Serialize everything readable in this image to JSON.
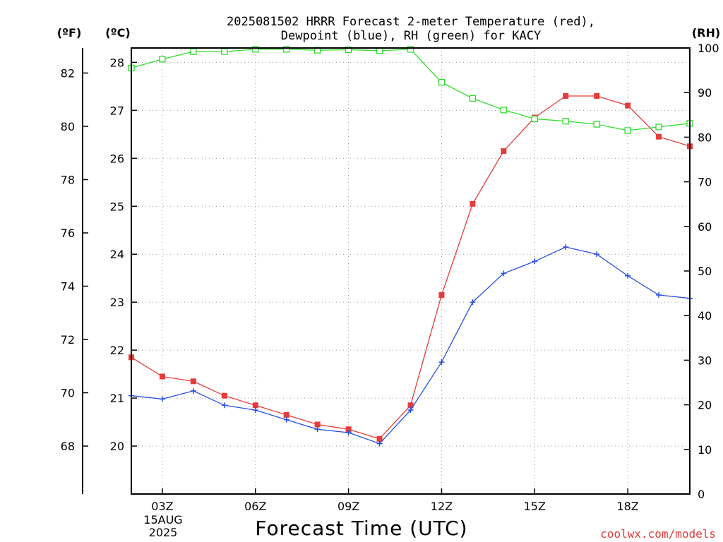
{
  "title_line1": "2025081502 HRRR Forecast 2-meter Temperature (red),",
  "title_line2": "Dewpoint (blue), RH (green) for KACY",
  "unit_f": "(ºF)",
  "unit_c": "(ºC)",
  "unit_rh": "(RH)",
  "xlabel": "Forecast Time (UTC)",
  "credit": "coolwx.com/models",
  "date_line1": "15AUG",
  "date_line2": "2025",
  "colors": {
    "temperature": "#e63b3b",
    "dewpoint": "#2a4fe0",
    "rh": "#2edc2e"
  },
  "chart_data": {
    "type": "line",
    "x_hours_utc": [
      2,
      3,
      4,
      5,
      6,
      7,
      8,
      9,
      10,
      11,
      12,
      13,
      14,
      15,
      16,
      17,
      18,
      19,
      20
    ],
    "x_ticks": [
      "03Z",
      "06Z",
      "09Z",
      "12Z",
      "15Z",
      "18Z"
    ],
    "x_tick_hours": [
      3,
      6,
      9,
      12,
      15,
      18
    ],
    "xlim": [
      2,
      20
    ],
    "left_axis_f": {
      "ticks": [
        "68",
        "70",
        "72",
        "74",
        "76",
        "78",
        "80",
        "82"
      ],
      "tick_values": [
        68,
        70,
        72,
        74,
        76,
        78,
        80,
        82
      ]
    },
    "inner_axis_c": {
      "ticks": [
        "20",
        "21",
        "22",
        "23",
        "24",
        "25",
        "26",
        "27",
        "28"
      ],
      "tick_values": [
        20,
        21,
        22,
        23,
        24,
        25,
        26,
        27,
        28
      ],
      "ylim": [
        19,
        28.3
      ]
    },
    "right_axis_rh": {
      "ticks": [
        "0",
        "10",
        "20",
        "30",
        "40",
        "50",
        "60",
        "70",
        "80",
        "90",
        "100"
      ],
      "tick_values": [
        0,
        10,
        20,
        30,
        40,
        50,
        60,
        70,
        80,
        90,
        100
      ],
      "ylim": [
        0,
        100
      ]
    },
    "series": [
      {
        "name": "Temperature (red)",
        "axis": "c",
        "marker": "filled-square",
        "values": [
          21.85,
          21.45,
          21.35,
          21.05,
          20.85,
          20.65,
          20.45,
          20.35,
          20.15,
          20.85,
          23.15,
          25.05,
          26.15,
          26.85,
          27.3,
          27.3,
          27.1,
          26.45,
          26.25
        ]
      },
      {
        "name": "Dewpoint (blue)",
        "axis": "c",
        "marker": "plus",
        "values": [
          21.05,
          20.98,
          21.15,
          20.85,
          20.75,
          20.55,
          20.35,
          20.28,
          20.05,
          20.75,
          21.75,
          23.0,
          23.6,
          23.85,
          24.15,
          24.0,
          23.55,
          23.15,
          23.08
        ]
      },
      {
        "name": "RH (green)",
        "axis": "rh",
        "marker": "open-square",
        "values": [
          95.5,
          97.5,
          99.2,
          99.2,
          99.7,
          99.7,
          99.5,
          99.6,
          99.4,
          99.7,
          92.3,
          88.7,
          86.1,
          84.1,
          83.6,
          82.9,
          81.5,
          82.3,
          83.1
        ]
      }
    ]
  }
}
